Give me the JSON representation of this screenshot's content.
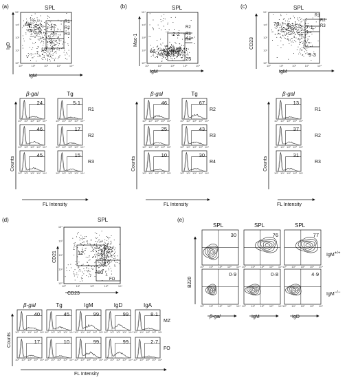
{
  "panels": {
    "a": {
      "label": "(a)",
      "title": "SPL",
      "ylabel": "IgD",
      "xlabel": "IgM",
      "gates": [
        "R1",
        "R2",
        "R3"
      ],
      "quadrant_values": [
        "68",
        "12",
        "10"
      ],
      "columns": [
        "β-gal",
        "Tg"
      ],
      "rows": [
        {
          "gate": "R1",
          "values": [
            "24",
            "5·1"
          ]
        },
        {
          "gate": "R2",
          "values": [
            "46",
            "17"
          ]
        },
        {
          "gate": "R3",
          "values": [
            "45",
            "15"
          ]
        }
      ],
      "hist_ylabel": "Counts",
      "hist_xlabel": "FL Intensity"
    },
    "b": {
      "label": "(b)",
      "title": "SPL",
      "ylabel": "Mac-1",
      "xlabel": "IgM",
      "gates": [
        "R2",
        "R3",
        "R4"
      ],
      "quadrant_values": [
        "2·2",
        "66",
        "25"
      ],
      "columns": [
        "β-gal",
        "Tg"
      ],
      "rows": [
        {
          "gate": "R2",
          "values": [
            "46",
            "67"
          ]
        },
        {
          "gate": "R3",
          "values": [
            "25",
            "43"
          ]
        },
        {
          "gate": "R4",
          "values": [
            "10",
            "30"
          ]
        }
      ],
      "hist_ylabel": "Counts",
      "hist_xlabel": "FL Intensity"
    },
    "c": {
      "label": "(c)",
      "title": "SPL",
      "ylabel": "CD23",
      "xlabel": "IgM",
      "gates": [
        "R1",
        "R2",
        "R3"
      ],
      "quadrant_values": [
        "76",
        "7·1",
        "9·3"
      ],
      "columns": [
        "β-gal"
      ],
      "rows": [
        {
          "gate": "R1",
          "values": [
            "13"
          ]
        },
        {
          "gate": "R2",
          "values": [
            "37"
          ]
        },
        {
          "gate": "R3",
          "values": [
            "31"
          ]
        }
      ],
      "hist_ylabel": "Counts",
      "hist_xlabel": "FL Intensity"
    },
    "d": {
      "label": "(d)",
      "title": "SPL",
      "ylabel": "CD21",
      "xlabel": "CD23",
      "gates": [
        "MZ",
        "FO"
      ],
      "quadrant_values": [
        "12",
        "80"
      ],
      "columns": [
        "β-gal",
        "Tg",
        "IgM",
        "IgD",
        "IgA"
      ],
      "rows": [
        {
          "gate": "MZ",
          "values": [
            "40",
            "45",
            "99",
            "99",
            "8·1"
          ]
        },
        {
          "gate": "FO",
          "values": [
            "17",
            "10",
            "99",
            "99",
            "2·7"
          ]
        }
      ],
      "hist_ylabel": "Counts",
      "hist_xlabel": "FL Intensity"
    },
    "e": {
      "label": "(e)",
      "ylabel": "B220",
      "col_titles": [
        "SPL",
        "SPL",
        "SPL"
      ],
      "xlabels": [
        "β-gal",
        "IgM",
        "IgD"
      ],
      "rows": [
        {
          "genotype": "IgM",
          "sup": "+/+",
          "values": [
            "30",
            "76",
            "77"
          ]
        },
        {
          "genotype": "IgM",
          "sup": "−/−",
          "values": [
            "0·9",
            "0·8",
            "4·9"
          ]
        }
      ]
    }
  },
  "tick_labels": [
    "10⁰",
    "10¹",
    "10²",
    "10³",
    "10⁴"
  ]
}
